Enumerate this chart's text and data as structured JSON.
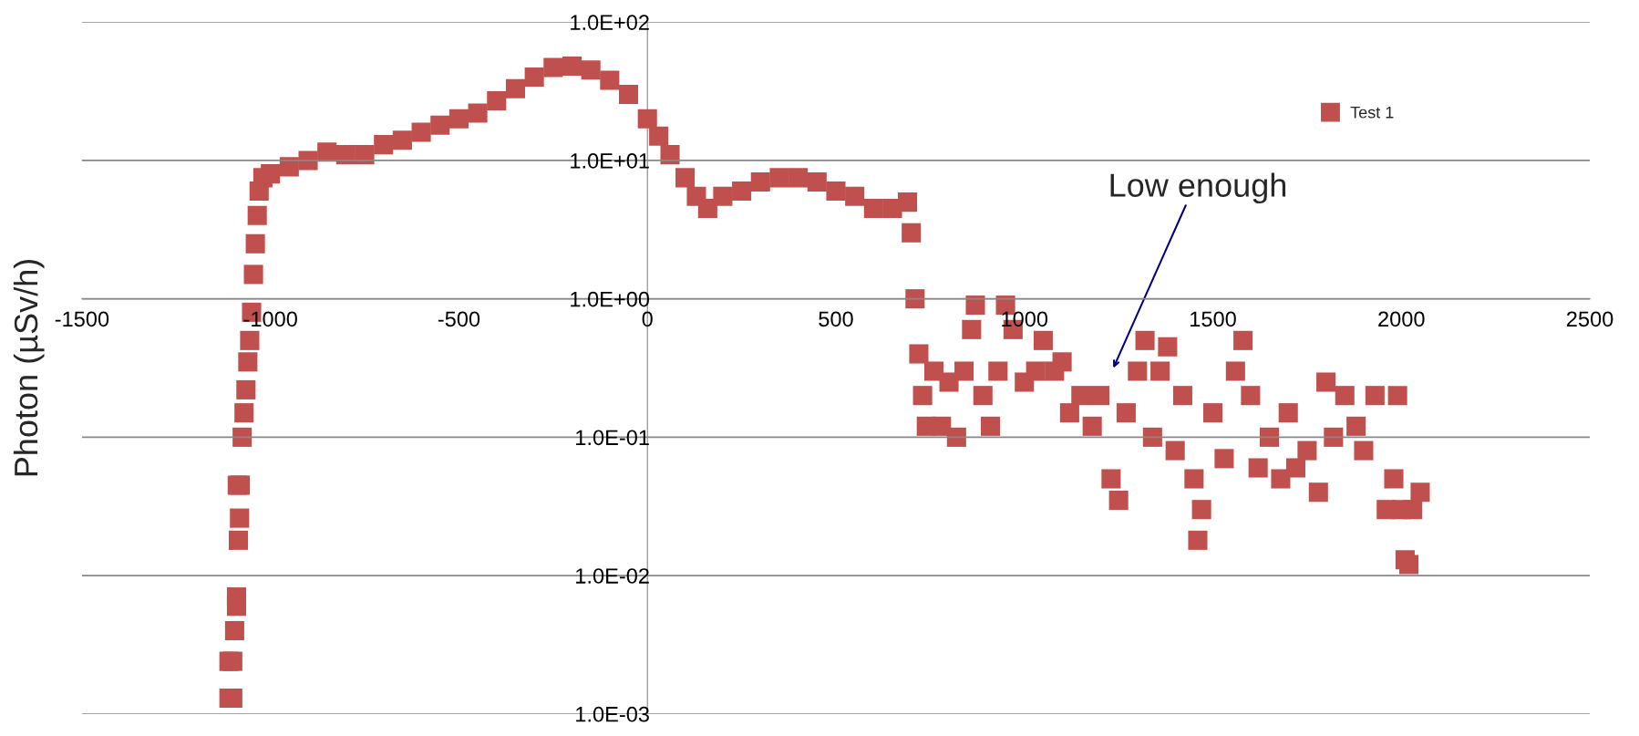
{
  "chart_data": {
    "type": "scatter",
    "ylabel": "Photon (µSv/h)",
    "log": "y",
    "grid": "y",
    "legend": "top right",
    "marker": "square",
    "xlim": [
      -1500,
      2500
    ],
    "xticks": [
      -1500,
      -1000,
      -500,
      0,
      500,
      1000,
      1500,
      2000,
      2500
    ],
    "ylim": [
      0.001,
      100
    ],
    "yticks": [
      {
        "value": 0.001,
        "label": "1.0E-03"
      },
      {
        "value": 0.01,
        "label": "1.0E-02"
      },
      {
        "value": 0.1,
        "label": "1.0E-01"
      },
      {
        "value": 1,
        "label": "1.0E+00"
      },
      {
        "value": 10,
        "label": "1.0E+01"
      },
      {
        "value": 100,
        "label": "1.0E+02"
      }
    ],
    "annotations": [
      "Low enough"
    ],
    "series": [
      {
        "name": "Test 1",
        "color": "#c0504d",
        "x": [
          -1110,
          -1100,
          -1110,
          -1100,
          -1095,
          -1090,
          -1090,
          -1085,
          -1082,
          -1088,
          -1080,
          -1075,
          -1070,
          -1065,
          -1060,
          -1055,
          -1050,
          -1045,
          -1040,
          -1035,
          -1030,
          -1020,
          -1000,
          -950,
          -900,
          -850,
          -800,
          -750,
          -700,
          -650,
          -600,
          -550,
          -500,
          -450,
          -400,
          -350,
          -300,
          -250,
          -200,
          -150,
          -100,
          -50,
          0,
          30,
          60,
          100,
          130,
          160,
          200,
          250,
          300,
          350,
          400,
          450,
          500,
          550,
          600,
          650,
          690,
          700,
          710,
          720,
          730,
          740,
          760,
          780,
          800,
          820,
          840,
          860,
          870,
          890,
          910,
          930,
          950,
          970,
          1000,
          1030,
          1050,
          1080,
          1100,
          1120,
          1150,
          1180,
          1200,
          1230,
          1250,
          1270,
          1300,
          1320,
          1340,
          1360,
          1380,
          1400,
          1420,
          1450,
          1460,
          1470,
          1500,
          1530,
          1560,
          1580,
          1600,
          1620,
          1650,
          1680,
          1700,
          1720,
          1750,
          1780,
          1800,
          1820,
          1850,
          1880,
          1900,
          1930,
          1960,
          1980,
          1990,
          2000,
          2010,
          2020,
          2030,
          2050
        ],
        "values": [
          0.0013,
          0.0013,
          0.0024,
          0.0024,
          0.004,
          0.006,
          0.007,
          0.018,
          0.026,
          0.045,
          0.045,
          0.1,
          0.15,
          0.22,
          0.35,
          0.5,
          0.8,
          1.5,
          2.5,
          4,
          6,
          7.5,
          8,
          9,
          10,
          11.5,
          11,
          11,
          13,
          14,
          16,
          18,
          20,
          22,
          27,
          33,
          40,
          47,
          48,
          45,
          38,
          30,
          20,
          15,
          11,
          7.5,
          5.5,
          4.5,
          5.5,
          6,
          7,
          7.5,
          7.5,
          7,
          6,
          5.5,
          4.5,
          4.5,
          5,
          3,
          1,
          0.4,
          0.2,
          0.12,
          0.3,
          0.12,
          0.25,
          0.1,
          0.3,
          0.6,
          0.9,
          0.2,
          0.12,
          0.3,
          0.9,
          0.6,
          0.25,
          0.3,
          0.5,
          0.3,
          0.35,
          0.15,
          0.2,
          0.12,
          0.2,
          0.05,
          0.035,
          0.15,
          0.3,
          0.5,
          0.1,
          0.3,
          0.45,
          0.08,
          0.2,
          0.05,
          0.018,
          0.03,
          0.15,
          0.07,
          0.3,
          0.5,
          0.2,
          0.06,
          0.1,
          0.05,
          0.15,
          0.06,
          0.08,
          0.04,
          0.25,
          0.1,
          0.2,
          0.12,
          0.08,
          0.2,
          0.03,
          0.05,
          0.2,
          0.03,
          0.013,
          0.012,
          0.03,
          0.04
        ]
      }
    ]
  }
}
